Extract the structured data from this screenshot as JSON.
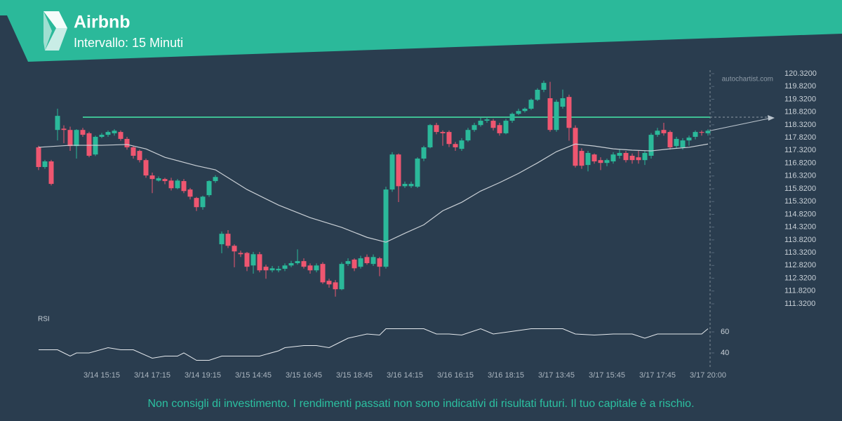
{
  "chart_data": {
    "type": "candlestick",
    "title": "Airbnb",
    "subtitle": "Intervallo: 15 Minuti",
    "watermark": "autochartist.com",
    "categories": [
      null,
      null,
      null,
      null,
      null,
      null,
      null,
      null,
      null,
      null,
      "3/14 15:15",
      null,
      null,
      null,
      null,
      null,
      null,
      null,
      "3/14 17:15",
      null,
      null,
      null,
      null,
      null,
      null,
      null,
      "3/14 19:15",
      null,
      null,
      null,
      null,
      null,
      null,
      null,
      "3/15 14:45",
      null,
      null,
      null,
      null,
      null,
      null,
      null,
      "3/15 16:45",
      null,
      null,
      null,
      null,
      null,
      null,
      null,
      "3/15 18:45",
      null,
      null,
      null,
      null,
      null,
      null,
      null,
      "3/16 14:15",
      null,
      null,
      null,
      null,
      null,
      null,
      null,
      "3/16 16:15",
      null,
      null,
      null,
      null,
      null,
      null,
      null,
      "3/16 18:15",
      null,
      null,
      null,
      null,
      null,
      null,
      null,
      "3/17 13:45",
      null,
      null,
      null,
      null,
      null,
      null,
      null,
      "3/17 15:45",
      null,
      null,
      null,
      null,
      null,
      null,
      null,
      "3/17 17:45",
      null,
      null,
      null,
      null,
      null,
      null,
      null,
      "3/17 20:00"
    ],
    "open": [
      117.44,
      116.67,
      116.89,
      118.12,
      118.17,
      118.12,
      117.49,
      118.12,
      117.99,
      117.16,
      117.85,
      117.93,
      117.99,
      118.04,
      117.77,
      117.44,
      117.3,
      116.94,
      116.34,
      116.14,
      116.2,
      116.14,
      115.84,
      116.12,
      115.79,
      115.46,
      115.1,
      115.57,
      116.12,
      113.65,
      114.06,
      113.59,
      113.31,
      113.31,
      112.82,
      113.26,
      112.77,
      112.63,
      112.63,
      112.69,
      112.82,
      112.91,
      112.99,
      112.82,
      112.63,
      112.88,
      112.22,
      112.16,
      111.89,
      112.88,
      113.05,
      112.77,
      113.15,
      112.88,
      113.1,
      112.77,
      115.79,
      117.16,
      115.92,
      115.92,
      115.9,
      117.0,
      117.44,
      118.31,
      118.04,
      118.04,
      117.57,
      117.38,
      117.71,
      118.12,
      118.31,
      118.48,
      118.48,
      118.31,
      117.99,
      118.48,
      118.75,
      118.86,
      118.95,
      119.3,
      119.69,
      119.36,
      118.12,
      119.03,
      119.41,
      118.2,
      117.3,
      116.75,
      117.16,
      116.94,
      116.83,
      116.89,
      117.11,
      117.22,
      117.11,
      117.05,
      116.94,
      117.11,
      117.93,
      118.12,
      118.04,
      117.49,
      117.44,
      117.71,
      117.85,
      118.04,
      117.99
    ],
    "high": [
      117.5,
      116.95,
      116.95,
      118.95,
      118.3,
      118.25,
      118.15,
      118.2,
      118.05,
      117.9,
      118.0,
      118.1,
      118.15,
      118.1,
      117.85,
      117.5,
      117.35,
      117.0,
      116.45,
      116.3,
      116.25,
      116.25,
      116.2,
      116.2,
      115.85,
      115.5,
      115.55,
      116.15,
      116.35,
      114.15,
      114.2,
      113.65,
      113.4,
      113.35,
      113.35,
      113.35,
      112.85,
      112.8,
      112.8,
      112.9,
      113.0,
      113.45,
      113.1,
      112.9,
      112.9,
      112.95,
      112.3,
      112.25,
      112.95,
      113.1,
      113.1,
      113.2,
      113.25,
      113.25,
      113.15,
      115.9,
      117.25,
      117.2,
      116.1,
      116.1,
      117.05,
      117.5,
      118.35,
      118.4,
      118.1,
      118.1,
      117.65,
      117.8,
      118.2,
      118.4,
      118.6,
      118.6,
      118.55,
      118.4,
      118.55,
      118.8,
      118.95,
      119.0,
      119.35,
      119.75,
      120.05,
      120.0,
      119.3,
      119.7,
      119.5,
      118.3,
      117.4,
      117.3,
      117.2,
      117.05,
      117.0,
      117.25,
      117.35,
      117.3,
      117.2,
      117.3,
      117.3,
      118.0,
      118.2,
      118.4,
      118.1,
      117.85,
      117.8,
      117.9,
      118.1,
      118.1,
      118.15
    ],
    "low": [
      116.55,
      116.6,
      115.95,
      117.71,
      117.6,
      117.3,
      117.0,
      117.85,
      117.05,
      117.1,
      117.8,
      117.85,
      117.9,
      117.7,
      117.35,
      117.0,
      116.85,
      116.25,
      115.65,
      116.1,
      116.0,
      115.75,
      115.8,
      115.65,
      115.4,
      114.95,
      115.0,
      115.5,
      116.05,
      113.3,
      113.5,
      112.75,
      113.15,
      112.6,
      112.5,
      112.55,
      112.3,
      112.55,
      112.55,
      112.6,
      112.75,
      112.85,
      112.7,
      112.5,
      112.55,
      112.1,
      111.95,
      111.6,
      111.85,
      112.8,
      112.6,
      112.7,
      112.85,
      112.8,
      112.4,
      112.7,
      115.7,
      115.3,
      115.85,
      115.85,
      115.85,
      116.9,
      117.4,
      117.95,
      117.5,
      117.45,
      117.3,
      117.3,
      117.65,
      118.05,
      118.25,
      118.4,
      118.1,
      117.9,
      117.95,
      118.4,
      118.7,
      118.8,
      118.9,
      119.25,
      119.6,
      118.05,
      118.05,
      118.95,
      117.7,
      116.65,
      116.6,
      116.5,
      116.8,
      116.55,
      116.7,
      116.8,
      117.0,
      116.85,
      116.8,
      116.8,
      116.75,
      117.0,
      117.85,
      117.9,
      117.35,
      117.4,
      117.35,
      117.5,
      117.75,
      117.9,
      117.9
    ],
    "close": [
      116.67,
      116.89,
      116.01,
      118.67,
      118.12,
      117.49,
      118.12,
      117.93,
      117.11,
      117.85,
      117.93,
      118.04,
      118.09,
      117.77,
      117.44,
      117.11,
      116.94,
      116.34,
      116.2,
      116.23,
      116.12,
      115.84,
      116.14,
      115.73,
      115.51,
      115.1,
      115.51,
      116.12,
      116.28,
      114.06,
      113.59,
      113.37,
      113.26,
      112.77,
      113.26,
      112.63,
      112.63,
      112.71,
      112.69,
      112.82,
      112.91,
      112.99,
      112.77,
      112.63,
      112.82,
      112.16,
      112.08,
      111.89,
      112.88,
      112.99,
      112.71,
      113.1,
      112.91,
      113.15,
      112.77,
      115.79,
      117.16,
      115.92,
      116.01,
      116.01,
      117.0,
      117.44,
      118.31,
      118.04,
      117.99,
      117.57,
      117.44,
      117.71,
      118.12,
      118.31,
      118.48,
      118.53,
      118.2,
      117.99,
      118.48,
      118.75,
      118.86,
      118.95,
      119.3,
      119.69,
      119.96,
      118.12,
      119.22,
      119.36,
      118.2,
      116.72,
      116.72,
      117.22,
      116.89,
      116.83,
      116.94,
      117.16,
      117.22,
      116.94,
      116.94,
      116.94,
      117.22,
      117.93,
      118.09,
      117.99,
      117.44,
      117.77,
      117.71,
      117.82,
      118.04,
      118.01,
      118.09
    ],
    "up_color": "#2bb99a",
    "down_color": "#ef5670",
    "ylim": [
      111.32,
      120.32
    ],
    "yticks": [
      {
        "value": 120.32,
        "label": "120.3200"
      },
      {
        "value": 119.82,
        "label": "119.8200"
      },
      {
        "value": 119.32,
        "label": "119.3200"
      },
      {
        "value": 118.82,
        "label": "118.8200"
      },
      {
        "value": 118.32,
        "label": "118.3200"
      },
      {
        "value": 117.82,
        "label": "117.8200"
      },
      {
        "value": 117.32,
        "label": "117.3200"
      },
      {
        "value": 116.82,
        "label": "116.8200"
      },
      {
        "value": 116.32,
        "label": "116.3200"
      },
      {
        "value": 115.82,
        "label": "115.8200"
      },
      {
        "value": 115.32,
        "label": "115.3200"
      },
      {
        "value": 114.82,
        "label": "114.8200"
      },
      {
        "value": 114.32,
        "label": "114.3200"
      },
      {
        "value": 113.82,
        "label": "113.8200"
      },
      {
        "value": 113.32,
        "label": "113.3200"
      },
      {
        "value": 112.82,
        "label": "112.8200"
      },
      {
        "value": 112.32,
        "label": "112.3200"
      },
      {
        "value": 111.82,
        "label": "111.8200"
      },
      {
        "value": 111.32,
        "label": "111.3200"
      }
    ],
    "moving_average": {
      "color": "#c9cfd5",
      "x": [
        0,
        5,
        10,
        14,
        17,
        20,
        25,
        28,
        33,
        38,
        43,
        48,
        52,
        55,
        58,
        61,
        64,
        67,
        70,
        73,
        76,
        79,
        82,
        85,
        88,
        91,
        94,
        97,
        100,
        103,
        106
      ],
      "values": [
        117.44,
        117.52,
        117.52,
        117.55,
        117.38,
        117.05,
        116.72,
        116.56,
        115.79,
        115.18,
        114.69,
        114.31,
        113.92,
        113.73,
        114.08,
        114.41,
        114.96,
        115.29,
        115.73,
        116.06,
        116.42,
        116.83,
        117.27,
        117.57,
        117.49,
        117.38,
        117.33,
        117.3,
        117.38,
        117.44,
        117.57
      ]
    },
    "level": {
      "value": 118.62,
      "color": "#3fbf93"
    },
    "rsi": {
      "label": "RSI",
      "color": "#e6eaee",
      "ylim": [
        30,
        70
      ],
      "yticks": [
        40,
        60
      ],
      "x": [
        0,
        3,
        4,
        5,
        6,
        8,
        11,
        13,
        15,
        18,
        20,
        22,
        23,
        25,
        27,
        29,
        32,
        35,
        38,
        39,
        42,
        44,
        46,
        47,
        49,
        52,
        54,
        55,
        61,
        63,
        65,
        67,
        70,
        72,
        78,
        83,
        85,
        88,
        91,
        94,
        96,
        98,
        105,
        106
      ],
      "values": [
        43,
        43,
        40,
        37,
        40,
        40,
        45,
        43,
        43,
        35,
        37,
        37,
        40,
        33,
        33,
        37,
        37,
        37,
        42,
        45,
        47,
        47,
        45,
        48,
        54,
        58,
        57,
        63,
        63,
        58,
        58,
        57,
        63,
        58,
        63,
        63,
        58,
        57,
        58,
        58,
        54,
        58,
        58,
        63
      ]
    }
  },
  "disclaimer": "Non consigli di investimento. I rendimenti passati non sono indicativi di risultati futuri. Il tuo capitale è a rischio."
}
